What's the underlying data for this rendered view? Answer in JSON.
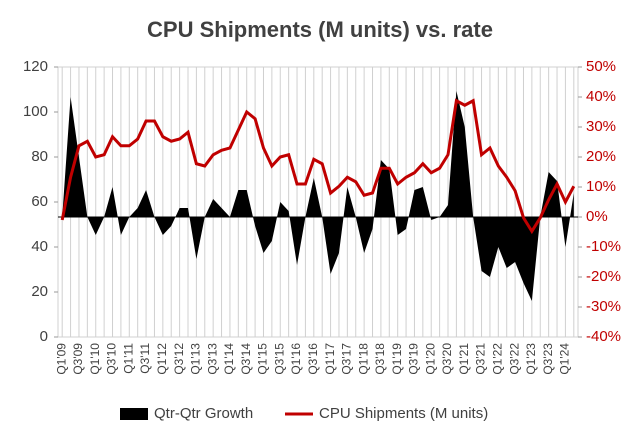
{
  "chart_data": {
    "type": "line",
    "title": "CPU Shipments (M units) vs. rate",
    "categories": [
      "Q1'09",
      null,
      "Q3'09",
      null,
      "Q1'10",
      null,
      "Q3'10",
      null,
      "Q1'11",
      null,
      "Q3'11",
      null,
      "Q1'12",
      null,
      "Q3'12",
      null,
      "Q1'13",
      null,
      "Q3'13",
      null,
      "Q1'14",
      null,
      "Q3'14",
      null,
      "Q1'15",
      null,
      "Q3'15",
      null,
      "Q1'16",
      null,
      "Q3'16",
      null,
      "Q1'17",
      null,
      "Q3'17",
      null,
      "Q1'18",
      null,
      "Q3'18",
      null,
      "Q1'19",
      null,
      "Q3'19",
      null,
      "Q1'20",
      null,
      "Q3'20",
      null,
      "Q1'21",
      null,
      "Q3'21",
      null,
      "Q1'22",
      null,
      "Q3'22",
      null,
      "Q1'23",
      null,
      "Q3'23",
      null,
      "Q1'24",
      null
    ],
    "series": [
      {
        "name": "Qtr-Qtr Growth",
        "color": "#000000",
        "axis": "y2",
        "style": "area",
        "values": [
          0,
          40,
          20,
          0,
          -6,
          0,
          10,
          -6,
          0,
          3,
          9,
          0,
          -6,
          -3,
          3,
          3,
          -14,
          0,
          6,
          3,
          0,
          9,
          9,
          -3,
          -12,
          -8,
          5,
          2,
          -16,
          0,
          13,
          0,
          -19,
          -12,
          10,
          0,
          -12,
          -4,
          19,
          16,
          -6,
          -4,
          9,
          10,
          -1,
          0,
          4,
          42,
          30,
          0,
          -18,
          -20,
          -10,
          -17,
          -15,
          -22,
          -28,
          0,
          15,
          12,
          -10,
          8
        ]
      },
      {
        "name": "CPU Shipments (M units)",
        "color": "#c00000",
        "axis": "y",
        "style": "line",
        "values": [
          52,
          71,
          85,
          87,
          80,
          81,
          89,
          85,
          85,
          88,
          96,
          96,
          89,
          87,
          88,
          91,
          77,
          76,
          81,
          83,
          84,
          92,
          100,
          97,
          84,
          76,
          80,
          81,
          68,
          68,
          79,
          77,
          64,
          67,
          71,
          69,
          63,
          64,
          75,
          75,
          68,
          71,
          73,
          77,
          73,
          75,
          81,
          105,
          103,
          105,
          81,
          84,
          76,
          71,
          65,
          53,
          47,
          53,
          61,
          68,
          60,
          67
        ]
      }
    ],
    "ylim": [
      0,
      120
    ],
    "yticks": [
      0,
      20,
      40,
      60,
      80,
      100,
      120
    ],
    "y2lim": [
      -40,
      50
    ],
    "y2ticks": [
      {
        "value": -40,
        "label": "-40%"
      },
      {
        "value": -30,
        "label": "-30%"
      },
      {
        "value": -20,
        "label": "-20%"
      },
      {
        "value": -10,
        "label": "-10%"
      },
      {
        "value": 0,
        "label": "0%"
      },
      {
        "value": 10,
        "label": "10%"
      },
      {
        "value": 20,
        "label": "20%"
      },
      {
        "value": 30,
        "label": "30%"
      },
      {
        "value": 40,
        "label": "40%"
      },
      {
        "value": 50,
        "label": "50%"
      }
    ],
    "y2_color": "#c00000",
    "grid": true,
    "legend": "bottom"
  }
}
